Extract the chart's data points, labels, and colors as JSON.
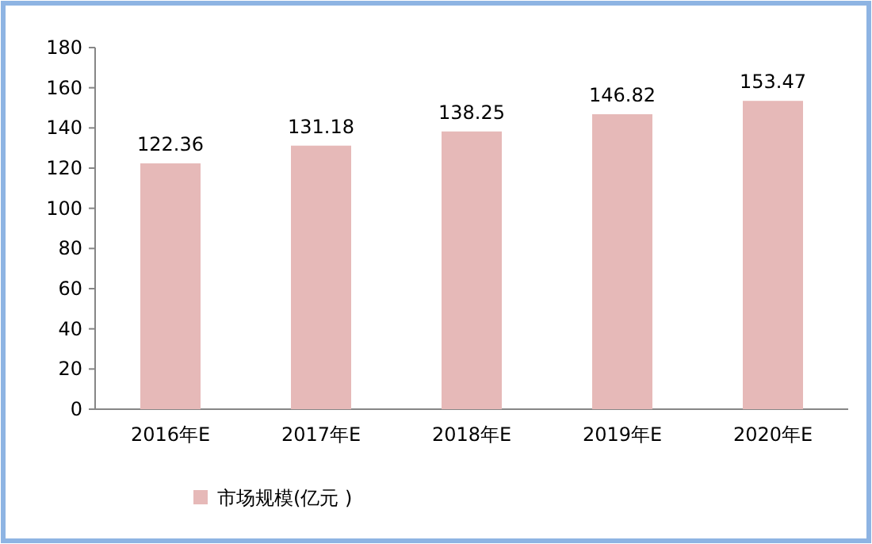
{
  "chart_data": {
    "type": "bar",
    "categories": [
      "2016年E",
      "2017年E",
      "2018年E",
      "2019年E",
      "2020年E"
    ],
    "series": [
      {
        "name": "市场规模(亿元 )",
        "color": "#e6b9b8",
        "values": [
          122.36,
          131.18,
          138.25,
          146.82,
          153.47
        ]
      }
    ],
    "ylim": [
      0,
      180
    ],
    "yticks": [
      0,
      20,
      40,
      60,
      80,
      100,
      120,
      140,
      160,
      180
    ],
    "data_labels": true,
    "legend": "bottom",
    "grid": false
  }
}
